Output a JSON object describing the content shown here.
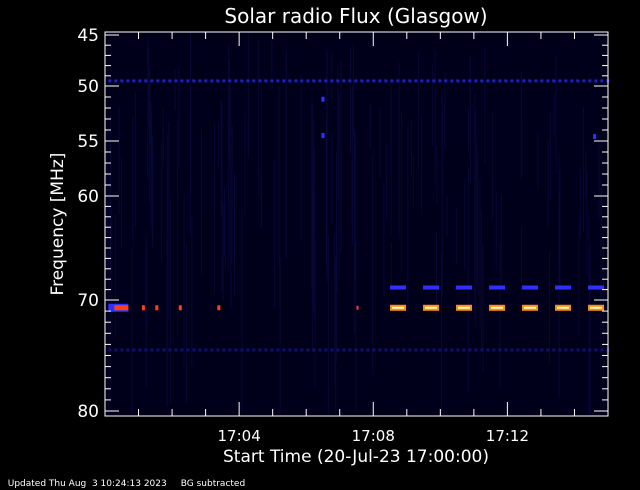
{
  "chart_data": {
    "type": "heatmap",
    "title": "Solar radio Flux (Glasgow)",
    "xlabel": "Start Time (20-Jul-23 17:00:00)",
    "ylabel": "Frequency [MHz]",
    "x_unit": "minutes after 17:00:00",
    "xlim": [
      0,
      15
    ],
    "ylim": [
      45,
      80
    ],
    "x_ticks": [
      {
        "value": 4,
        "label": "17:04"
      },
      {
        "value": 8,
        "label": "17:08"
      },
      {
        "value": 12,
        "label": "17:12"
      }
    ],
    "y_ticks": [
      {
        "value": 45,
        "label": "45"
      },
      {
        "value": 50,
        "label": "50"
      },
      {
        "value": 55,
        "label": "55"
      },
      {
        "value": 60,
        "label": "60"
      },
      {
        "value": 70,
        "label": "70"
      },
      {
        "value": 80,
        "label": "80"
      }
    ],
    "background_color": "#00001a",
    "emission_bands": [
      {
        "frequency": 49.5,
        "t_start": 0.1,
        "t_end": 15,
        "color": "#2020c0",
        "pattern": "dotted"
      },
      {
        "frequency": 68.8,
        "t_start": 8.5,
        "t_end": 15,
        "color": "#3030ff",
        "pattern": "dashed"
      },
      {
        "frequency": 70.7,
        "t_start": 8.5,
        "t_end": 15,
        "color": "#ff8c20",
        "pattern": "dashed-hot"
      },
      {
        "frequency": 70.7,
        "t_start": 0.1,
        "t_end": 3.5,
        "color": "#ff4020",
        "pattern": "sparse"
      },
      {
        "frequency": 74.5,
        "t_start": 0.1,
        "t_end": 15,
        "color": "#101070",
        "pattern": "dotted"
      }
    ]
  },
  "footer": {
    "updated": "Updated Thu Aug  3 10:24:13 2023",
    "note": "BG subtracted"
  },
  "colors": {
    "axis": "#ffffff",
    "text": "#ffffff"
  }
}
